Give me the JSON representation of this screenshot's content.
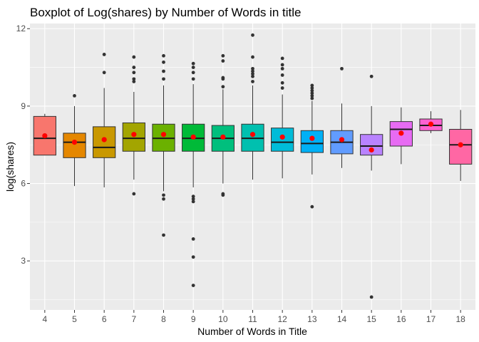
{
  "chart_data": {
    "type": "boxplot",
    "title": "Boxplot of Log(shares) by Number of Words in title",
    "xlabel": "Number of Words in Title",
    "ylabel": "log(shares)",
    "ylim": [
      1.1,
      12.2
    ],
    "yticks": [
      3,
      6,
      9,
      12
    ],
    "grid": true,
    "legend": "none",
    "categories": [
      "4",
      "5",
      "6",
      "7",
      "8",
      "9",
      "10",
      "11",
      "12",
      "13",
      "14",
      "15",
      "16",
      "17",
      "18"
    ],
    "colors": [
      "#F8766D",
      "#E58700",
      "#C99800",
      "#A3A500",
      "#6BB100",
      "#00BA38",
      "#00BF7D",
      "#00C0AF",
      "#00BCD8",
      "#00B0F6",
      "#619CFF",
      "#B983FF",
      "#E76BF3",
      "#FD61D1",
      "#FF67A4"
    ],
    "mean_color": "#FF0000",
    "boxes": [
      {
        "category": "4",
        "whisker_low": 7.1,
        "q1": 7.1,
        "median": 7.75,
        "q3": 8.6,
        "whisker_high": 8.7,
        "mean": 7.85,
        "outliers": []
      },
      {
        "category": "5",
        "whisker_low": 5.9,
        "q1": 7.0,
        "median": 7.6,
        "q3": 7.95,
        "whisker_high": 9.0,
        "mean": 7.6,
        "outliers": [
          9.4
        ]
      },
      {
        "category": "6",
        "whisker_low": 5.85,
        "q1": 7.0,
        "median": 7.4,
        "q3": 8.2,
        "whisker_high": 9.7,
        "mean": 7.7,
        "outliers": [
          10.3,
          11.0
        ]
      },
      {
        "category": "7",
        "whisker_low": 6.15,
        "q1": 7.25,
        "median": 7.75,
        "q3": 8.35,
        "whisker_high": 9.55,
        "mean": 7.9,
        "outliers": [
          5.6,
          9.95,
          10.05,
          10.3,
          10.5,
          10.9
        ]
      },
      {
        "category": "8",
        "whisker_low": 5.7,
        "q1": 7.25,
        "median": 7.75,
        "q3": 8.3,
        "whisker_high": 9.8,
        "mean": 7.9,
        "outliers": [
          4.0,
          5.4,
          5.55,
          10.05,
          10.35,
          10.7,
          10.95
        ]
      },
      {
        "category": "9",
        "whisker_low": 5.85,
        "q1": 7.25,
        "median": 7.75,
        "q3": 8.3,
        "whisker_high": 9.85,
        "mean": 7.8,
        "outliers": [
          2.05,
          3.15,
          3.85,
          5.3,
          5.4,
          5.5,
          10.05,
          10.3,
          10.5,
          10.65
        ]
      },
      {
        "category": "10",
        "whisker_low": 6.0,
        "q1": 7.25,
        "median": 7.75,
        "q3": 8.25,
        "whisker_high": 9.65,
        "mean": 7.8,
        "outliers": [
          5.55,
          5.6,
          9.75,
          10.05,
          10.1,
          10.75,
          10.95
        ]
      },
      {
        "category": "11",
        "whisker_low": 6.15,
        "q1": 7.25,
        "median": 7.75,
        "q3": 8.3,
        "whisker_high": 9.8,
        "mean": 7.9,
        "outliers": [
          9.95,
          10.15,
          10.25,
          10.35,
          10.45,
          10.9,
          11.75
        ]
      },
      {
        "category": "12",
        "whisker_low": 6.2,
        "q1": 7.25,
        "median": 7.6,
        "q3": 8.15,
        "whisker_high": 9.45,
        "mean": 7.8,
        "outliers": [
          9.7,
          9.9,
          10.2,
          10.45,
          10.6,
          10.85
        ]
      },
      {
        "category": "13",
        "whisker_low": 6.35,
        "q1": 7.2,
        "median": 7.55,
        "q3": 8.05,
        "whisker_high": 9.2,
        "mean": 7.75,
        "outliers": [
          5.1,
          9.3,
          9.4,
          9.5,
          9.6,
          9.7,
          9.8
        ]
      },
      {
        "category": "14",
        "whisker_low": 6.6,
        "q1": 7.15,
        "median": 7.6,
        "q3": 8.05,
        "whisker_high": 9.1,
        "mean": 7.7,
        "outliers": [
          10.45
        ]
      },
      {
        "category": "15",
        "whisker_low": 6.5,
        "q1": 7.1,
        "median": 7.45,
        "q3": 7.9,
        "whisker_high": 9.0,
        "mean": 7.3,
        "outliers": [
          1.6,
          10.15
        ]
      },
      {
        "category": "16",
        "whisker_low": 6.75,
        "q1": 7.45,
        "median": 8.1,
        "q3": 8.4,
        "whisker_high": 8.95,
        "mean": 7.95,
        "outliers": []
      },
      {
        "category": "17",
        "whisker_low": 7.95,
        "q1": 8.05,
        "median": 8.25,
        "q3": 8.5,
        "whisker_high": 8.8,
        "mean": 8.3,
        "outliers": []
      },
      {
        "category": "18",
        "whisker_low": 6.1,
        "q1": 6.75,
        "median": 7.5,
        "q3": 8.1,
        "whisker_high": 8.85,
        "mean": 7.5,
        "outliers": []
      }
    ]
  }
}
